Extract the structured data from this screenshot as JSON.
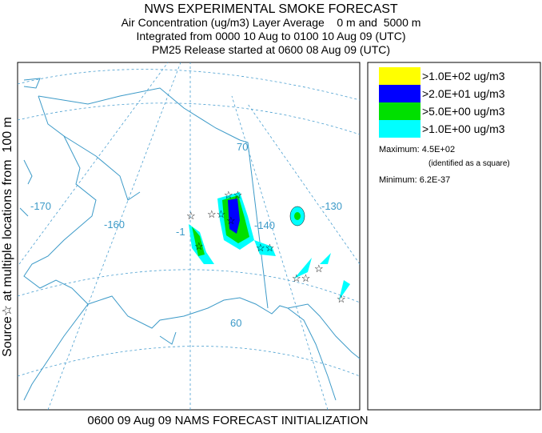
{
  "header": {
    "title": "NWS EXPERIMENTAL SMOKE FORECAST",
    "lines": [
      "Air Concentration (ug/m3) Layer Average    0 m and  5000 m",
      "Integrated from 0000 10 Aug to 0100 10 Aug 09 (UTC)",
      "PM25 Release started at 0600 08 Aug 09 (UTC)"
    ]
  },
  "side_label": "Source☆ at multiple locations from  100 m",
  "footer": "0600 09 Aug 09 NAMS FORECAST INITIALIZATION",
  "map_labels": [
    "-170",
    "-160",
    "-1",
    "-140",
    "-130",
    "70",
    "60"
  ],
  "legend": {
    "entries": [
      {
        "label": ">1.0E+02 ug/m3",
        "color": "#ffff00"
      },
      {
        "label": ">2.0E+01 ug/m3",
        "color": "#0000ff"
      },
      {
        "label": ">5.0E+00 ug/m3",
        "color": "#00e000"
      },
      {
        "label": ">1.0E+00 ug/m3",
        "color": "#00ffff"
      }
    ],
    "maximum": "Maximum: 4.5E+02",
    "maximum_note": "(identified as a square)",
    "minimum": "Minimum: 6.2E-37"
  }
}
